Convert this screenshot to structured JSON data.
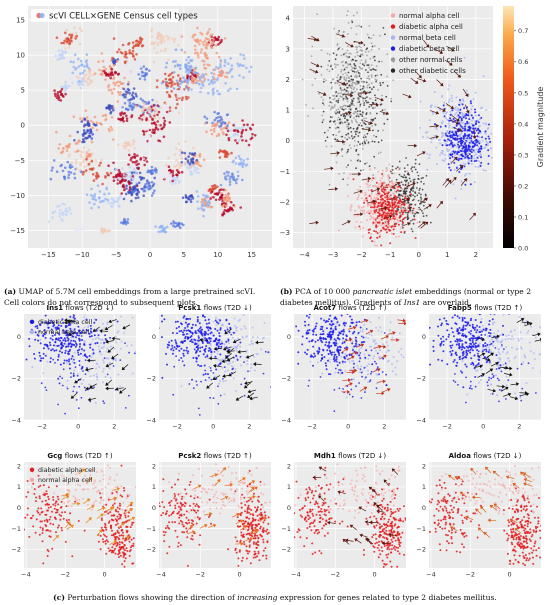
{
  "figure": {
    "caption_a_label": "(a)",
    "caption_a_text": "UMAP of 5.7M cell embeddings from a large pretrained scVI. Cell colors do not correspond to subsequent plots.",
    "caption_b_label": "(b)",
    "caption_b_text_1": "PCA of 10 000 ",
    "caption_b_italic": "pancreatic islet",
    "caption_b_text_2": " embeddings (normal or type 2 diabetes mellitus). Gradients of ",
    "caption_b_gene": "Ins1",
    "caption_b_text_3": " are overlaid.",
    "caption_c_label": "(c)",
    "caption_c_text_1": "Perturbation flows showing the direction of ",
    "caption_c_italic": "increasing",
    "caption_c_text_2": " expression for genes related to type 2 diabetes mellitus."
  },
  "colors": {
    "panel_bg": "#ebebeb",
    "grid": "#ffffff",
    "diabetic_beta": "#1a1aee",
    "normal_beta": "#a8b4f4",
    "diabetic_alpha": "#e41a1c",
    "normal_alpha": "#f7a8a8",
    "other_normal": "#9a9a9a",
    "other_diabetic": "#2a2a2a"
  },
  "chart_data": [
    {
      "id": "a",
      "type": "scatter",
      "legend": [
        "scVI CELL×GENE Census cell types"
      ],
      "xticks": [
        -15,
        -10,
        -5,
        0,
        5,
        10,
        15
      ],
      "yticks": [
        -15,
        -10,
        -5,
        0,
        5,
        10,
        15
      ],
      "xlim": [
        -18,
        18
      ],
      "ylim": [
        -17.5,
        17
      ]
    },
    {
      "id": "b",
      "type": "scatter",
      "legend": [
        "normal alpha cell",
        "diabetic alpha cell",
        "normal beta cell",
        "diabetic beta cell",
        "other normal cells",
        "other diabetic cells"
      ],
      "xticks": [
        -4,
        -3,
        -2,
        -1,
        0,
        1,
        2
      ],
      "yticks": [
        -3,
        -2,
        -1,
        0,
        1,
        2,
        3,
        4
      ],
      "xlim": [
        -4.4,
        2.6
      ],
      "ylim": [
        -3.5,
        4.4
      ],
      "colorbar_label": "Gradient magnitude",
      "colorbar_ticks": [
        "0.0",
        "0.1",
        "0.2",
        "0.3",
        "0.4",
        "0.5",
        "0.6",
        "0.7"
      ],
      "colorbar_range": [
        0,
        0.78
      ]
    },
    {
      "id": "c",
      "type": "scatter",
      "beta_row": {
        "legend": [
          "diabetic beta cell",
          "normal beta cell"
        ],
        "xticks": [
          -2,
          0,
          2
        ],
        "yticks": [
          -4,
          -2,
          0
        ],
        "xlim": [
          -3,
          3.2
        ],
        "ylim": [
          -4,
          1.1
        ],
        "panels": [
          {
            "gene": "Ins1",
            "suffix": "flows (T2D ↓)"
          },
          {
            "gene": "Pcsk1",
            "suffix": "flows (T2D ↓)"
          },
          {
            "gene": "Acot7",
            "suffix": "flows (T2D ↑)"
          },
          {
            "gene": "Fabp5",
            "suffix": "flows (T2D ↑)"
          }
        ]
      },
      "alpha_row": {
        "legend": [
          "diabetic alpha cell",
          "normal alpha cell"
        ],
        "xticks": [
          -4,
          -2,
          0
        ],
        "yticks": [
          -2,
          -1,
          0,
          1,
          2
        ],
        "xlim": [
          -4.1,
          1.6
        ],
        "ylim": [
          -2.9,
          2.2
        ],
        "panels": [
          {
            "gene": "Gcg",
            "suffix": "flows (T2D ↑)"
          },
          {
            "gene": "Pcsk2",
            "suffix": "flows (T2D ↑)"
          },
          {
            "gene": "Mdh1",
            "suffix": "flows (T2D ↓)"
          },
          {
            "gene": "Aldoa",
            "suffix": "flows (T2D ↓)"
          }
        ]
      }
    }
  ]
}
